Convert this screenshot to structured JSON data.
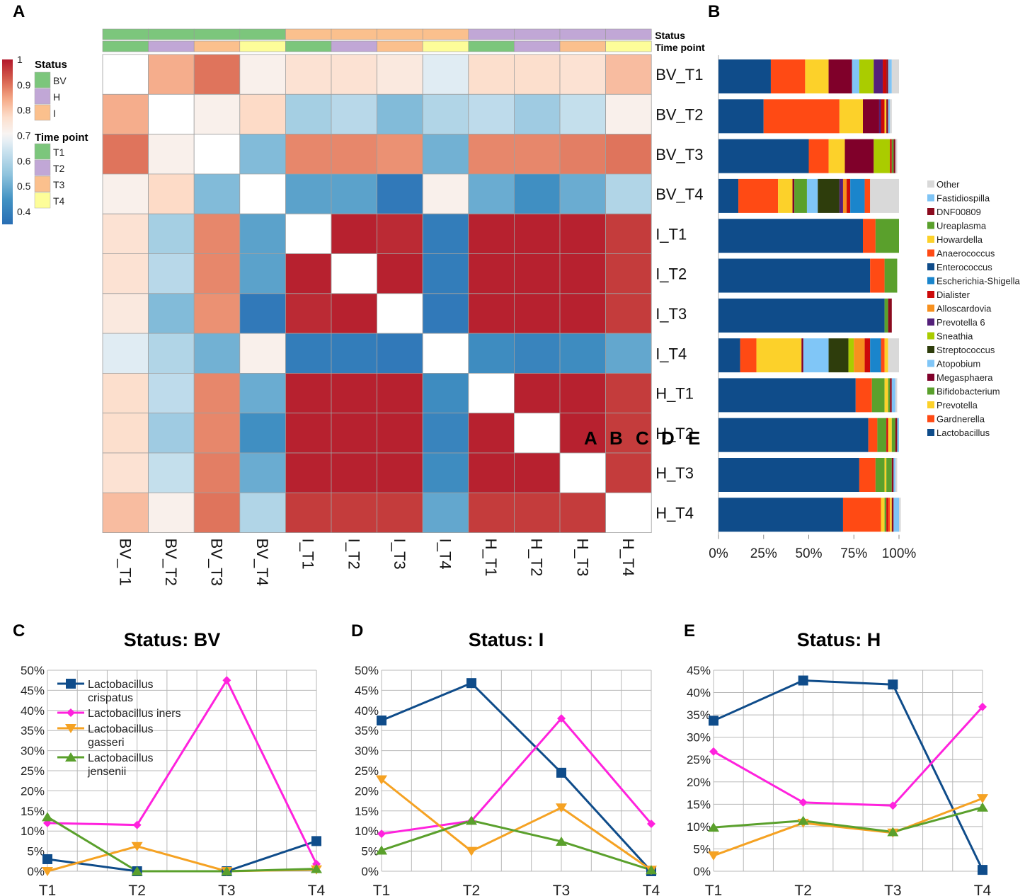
{
  "panel_letters": [
    "A",
    "B",
    "C",
    "D",
    "E"
  ],
  "stray_letters": [
    "A",
    "B",
    "C",
    "D",
    "E"
  ],
  "colors": {
    "status": {
      "BV": "#7cc67c",
      "H": "#c1a7d6",
      "I": "#fbc08d"
    },
    "timepoint": {
      "T1": "#7cc67c",
      "T2": "#c1a7d6",
      "T3": "#fbc08d",
      "T4": "#fdfd99"
    },
    "crispatus": "#0f4c8a",
    "iners": "#ff22dd",
    "gasseri": "#f5a223",
    "jensenii": "#5aa02c"
  },
  "chart_data": [
    {
      "type": "heatmap",
      "panel": "A",
      "rows": [
        "BV_T1",
        "BV_T2",
        "BV_T3",
        "BV_T4",
        "I_T1",
        "I_T2",
        "I_T3",
        "I_T4",
        "H_T1",
        "H_T2",
        "H_T3",
        "H_T4"
      ],
      "cols": [
        "BV_T1",
        "BV_T2",
        "BV_T3",
        "BV_T4",
        "I_T1",
        "I_T2",
        "I_T3",
        "I_T4",
        "H_T1",
        "H_T2",
        "H_T3",
        "H_T4"
      ],
      "values": [
        [
          null,
          0.84,
          0.9,
          0.72,
          0.76,
          0.76,
          0.74,
          0.67,
          0.77,
          0.77,
          0.76,
          0.82
        ],
        [
          0.84,
          null,
          0.72,
          0.78,
          0.58,
          0.61,
          0.53,
          0.6,
          0.62,
          0.57,
          0.63,
          0.72
        ],
        [
          0.9,
          0.72,
          null,
          0.53,
          0.88,
          0.88,
          0.87,
          0.51,
          0.88,
          0.88,
          0.89,
          0.9
        ],
        [
          0.72,
          0.78,
          0.53,
          null,
          0.48,
          0.48,
          0.38,
          0.72,
          0.5,
          0.44,
          0.5,
          0.6
        ],
        [
          0.76,
          0.58,
          0.88,
          0.48,
          null,
          0.99,
          0.98,
          0.39,
          0.99,
          0.99,
          0.99,
          0.96
        ],
        [
          0.76,
          0.61,
          0.88,
          0.48,
          0.99,
          null,
          0.99,
          0.39,
          0.99,
          0.99,
          0.99,
          0.96
        ],
        [
          0.74,
          0.53,
          0.87,
          0.38,
          0.98,
          0.99,
          null,
          0.38,
          0.99,
          0.99,
          0.99,
          0.96
        ],
        [
          0.67,
          0.6,
          0.51,
          0.72,
          0.39,
          0.39,
          0.38,
          null,
          0.43,
          0.41,
          0.43,
          0.49
        ],
        [
          0.77,
          0.62,
          0.88,
          0.5,
          0.99,
          0.99,
          0.99,
          0.43,
          null,
          0.99,
          0.99,
          0.96
        ],
        [
          0.77,
          0.57,
          0.88,
          0.44,
          0.99,
          0.99,
          0.99,
          0.41,
          0.99,
          null,
          0.99,
          0.96
        ],
        [
          0.76,
          0.63,
          0.89,
          0.5,
          0.99,
          0.99,
          0.99,
          0.43,
          0.99,
          0.99,
          null,
          0.96
        ],
        [
          0.82,
          0.72,
          0.9,
          0.6,
          0.96,
          0.96,
          0.96,
          0.49,
          0.96,
          0.96,
          0.96,
          null
        ]
      ],
      "annotation_labels": [
        "Status",
        "Time point"
      ],
      "status_row": [
        "BV",
        "BV",
        "BV",
        "BV",
        "I",
        "I",
        "I",
        "I",
        "H",
        "H",
        "H",
        "H"
      ],
      "timepoint_row": [
        "T1",
        "T2",
        "T3",
        "T4",
        "T1",
        "T2",
        "T3",
        "T4",
        "T1",
        "T2",
        "T3",
        "T4"
      ],
      "colorbar_ticks": [
        "1",
        "0.9",
        "0.8",
        "0.7",
        "0.6",
        "0.5",
        "0.4"
      ],
      "colorbar_range": [
        0.35,
        1.0
      ],
      "legend": {
        "status_title": "Status",
        "status_items": [
          "BV",
          "H",
          "I"
        ],
        "time_title": "Time point",
        "time_items": [
          "T1",
          "T2",
          "T3",
          "T4"
        ]
      }
    },
    {
      "type": "bar",
      "panel": "B",
      "orientation": "horizontal-stacked-100",
      "categories": [
        "BV_T1",
        "BV_T2",
        "BV_T3",
        "BV_T4",
        "I_T1",
        "I_T2",
        "I_T3",
        "I_T4",
        "H_T1",
        "H_T2",
        "H_T3",
        "H_T4"
      ],
      "xticks": [
        "0%",
        "25%",
        "50%",
        "75%",
        "100%"
      ],
      "legend": [
        {
          "name": "Other",
          "color": "#d9d9d9"
        },
        {
          "name": "Fastidiospilla",
          "color": "#7fc4f5"
        },
        {
          "name": "DNF00809",
          "color": "#8b0a1e"
        },
        {
          "name": "Ureaplasma",
          "color": "#5aa02c"
        },
        {
          "name": "Howardella",
          "color": "#fcd12a"
        },
        {
          "name": "Anaerococcus",
          "color": "#ff4a14"
        },
        {
          "name": "Enterococcus",
          "color": "#0f4c8a"
        },
        {
          "name": "Escherichia-Shigella",
          "color": "#1a85cc"
        },
        {
          "name": "Dialister",
          "color": "#cc0a0a"
        },
        {
          "name": "Alloscardovia",
          "color": "#f7901e"
        },
        {
          "name": "Prevotella 6",
          "color": "#54207a"
        },
        {
          "name": "Sneathia",
          "color": "#aacc00"
        },
        {
          "name": "Streptococcus",
          "color": "#2e3d0c"
        },
        {
          "name": "Atopobium",
          "color": "#80c6f7"
        },
        {
          "name": "Megasphaera",
          "color": "#80002a"
        },
        {
          "name": "Bifidobacterium",
          "color": "#5aa02c"
        },
        {
          "name": "Prevotella",
          "color": "#fcd12a"
        },
        {
          "name": "Gardnerella",
          "color": "#ff4a14"
        },
        {
          "name": "Lactobacillus",
          "color": "#0f4c8a"
        }
      ],
      "series": [
        {
          "name": "Lactobacillus",
          "values": [
            29,
            25,
            50,
            11,
            80,
            84,
            92,
            12,
            76,
            83,
            78,
            69
          ]
        },
        {
          "name": "Gardnerella",
          "values": [
            19,
            42,
            11,
            22,
            7,
            8,
            0,
            9,
            9,
            5,
            9,
            21
          ]
        },
        {
          "name": "Prevotella",
          "values": [
            13,
            13,
            9,
            8,
            0,
            0,
            0,
            25,
            0,
            0,
            0,
            2
          ]
        },
        {
          "name": "Megasphaera",
          "values": [
            13,
            9,
            16,
            1,
            0,
            0,
            0,
            1,
            0,
            0,
            0,
            0
          ]
        },
        {
          "name": "Bifidobacterium",
          "values": [
            0,
            0,
            0,
            7,
            0,
            0,
            0,
            0,
            7,
            5,
            5,
            1
          ]
        },
        {
          "name": "Atopobium",
          "values": [
            4,
            0,
            0,
            6,
            0,
            0,
            0,
            14,
            0,
            0,
            0,
            0
          ]
        },
        {
          "name": "Streptococcus",
          "values": [
            0,
            0,
            0,
            12,
            0,
            0,
            0,
            11,
            0,
            0,
            0,
            0
          ]
        },
        {
          "name": "Sneathia",
          "values": [
            8,
            0,
            9,
            0,
            0,
            0,
            0,
            3,
            0,
            0,
            0,
            0
          ]
        },
        {
          "name": "Prevotella 6",
          "values": [
            5,
            1,
            0,
            2,
            0,
            0,
            0,
            0,
            0,
            0,
            0,
            0
          ]
        },
        {
          "name": "Alloscardovia",
          "values": [
            0,
            0,
            0,
            2,
            0,
            0,
            0,
            6,
            0,
            0,
            0,
            0
          ]
        },
        {
          "name": "Dialister",
          "values": [
            2,
            2,
            1,
            2,
            0,
            0,
            0,
            3,
            0,
            1,
            0,
            1
          ]
        },
        {
          "name": "Escherichia-Shigella",
          "values": [
            0,
            0,
            0,
            8,
            0,
            0,
            0,
            6,
            0,
            0,
            0,
            0
          ]
        },
        {
          "name": "Enterococcus",
          "values": [
            0,
            0,
            0,
            0,
            0,
            0,
            0,
            0,
            0,
            0,
            0,
            0
          ]
        },
        {
          "name": "Anaerococcus",
          "values": [
            0,
            0,
            0,
            3,
            0,
            0,
            0,
            2,
            0,
            0,
            0,
            1
          ]
        },
        {
          "name": "Howardella",
          "values": [
            0,
            1,
            0,
            0,
            0,
            0,
            0,
            2,
            2,
            2,
            1,
            1
          ]
        },
        {
          "name": "Ureaplasma",
          "values": [
            0,
            0,
            1,
            0,
            13,
            7,
            2,
            0,
            1,
            2,
            3,
            0
          ]
        },
        {
          "name": "DNF00809",
          "values": [
            1,
            1,
            1,
            0,
            0,
            0,
            2,
            0,
            1,
            1,
            1,
            1
          ]
        },
        {
          "name": "Fastidiospilla",
          "values": [
            2,
            1,
            0,
            0,
            0,
            0,
            0,
            0,
            2,
            1,
            1,
            3
          ]
        },
        {
          "name": "Other",
          "values": [
            4,
            1,
            1,
            16,
            0,
            0,
            0,
            6,
            1,
            0,
            1,
            1
          ]
        }
      ]
    },
    {
      "type": "line",
      "panel": "C",
      "title": "Status: BV",
      "categories": [
        "T1",
        "T2",
        "T3",
        "T4"
      ],
      "yticks": [
        "50%",
        "45%",
        "40%",
        "35%",
        "30%",
        "25%",
        "20%",
        "15%",
        "10%",
        "5%",
        "0%"
      ],
      "ylim": [
        0,
        50
      ],
      "legend_placement": "top-left",
      "series": [
        {
          "name": "Lactobacillus crispatus",
          "legend_lines": [
            "Lactobacillus",
            "crispatus"
          ],
          "marker": "square",
          "values": [
            3.0,
            0.0,
            0.0,
            7.5
          ]
        },
        {
          "name": "Lactobacillus iners",
          "legend_lines": [
            "Lactobacillus iners"
          ],
          "marker": "diamond",
          "values": [
            12.0,
            11.5,
            47.5,
            1.8
          ]
        },
        {
          "name": "Lactobacillus gasseri",
          "legend_lines": [
            "Lactobacillus",
            "gasseri"
          ],
          "marker": "triangle-down",
          "values": [
            0.0,
            6.2,
            0.0,
            0.4
          ]
        },
        {
          "name": "Lactobacillus jensenii",
          "legend_lines": [
            "Lactobacillus",
            "jensenii"
          ],
          "marker": "triangle-up",
          "values": [
            13.5,
            0.0,
            0.0,
            0.6
          ]
        }
      ]
    },
    {
      "type": "line",
      "panel": "D",
      "title": "Status: I",
      "categories": [
        "T1",
        "T2",
        "T3",
        "T4"
      ],
      "yticks": [
        "50%",
        "45%",
        "40%",
        "35%",
        "30%",
        "25%",
        "20%",
        "15%",
        "10%",
        "5%",
        "0%"
      ],
      "ylim": [
        0,
        50
      ],
      "series": [
        {
          "name": "Lactobacillus crispatus",
          "marker": "square",
          "values": [
            37.5,
            46.8,
            24.5,
            0.0
          ]
        },
        {
          "name": "Lactobacillus iners",
          "marker": "diamond",
          "values": [
            9.3,
            12.5,
            38.0,
            11.8
          ]
        },
        {
          "name": "Lactobacillus gasseri",
          "marker": "triangle-down",
          "values": [
            22.8,
            5.0,
            15.8,
            0.3
          ]
        },
        {
          "name": "Lactobacillus jensenii",
          "marker": "triangle-up",
          "values": [
            5.2,
            12.6,
            7.4,
            0.3
          ]
        }
      ]
    },
    {
      "type": "line",
      "panel": "E",
      "title": "Status: H",
      "categories": [
        "T1",
        "T2",
        "T3",
        "T4"
      ],
      "yticks": [
        "45%",
        "40%",
        "35%",
        "30%",
        "25%",
        "20%",
        "15%",
        "10%",
        "5%",
        "0%"
      ],
      "ylim": [
        0,
        45
      ],
      "series": [
        {
          "name": "Lactobacillus crispatus",
          "marker": "square",
          "values": [
            33.7,
            42.7,
            41.8,
            0.3
          ]
        },
        {
          "name": "Lactobacillus iners",
          "marker": "diamond",
          "values": [
            26.8,
            15.4,
            14.7,
            36.8
          ]
        },
        {
          "name": "Lactobacillus gasseri",
          "marker": "triangle-down",
          "values": [
            3.5,
            10.8,
            8.6,
            16.3
          ]
        },
        {
          "name": "Lactobacillus jensenii",
          "marker": "triangle-up",
          "values": [
            9.8,
            11.3,
            8.8,
            14.3
          ]
        }
      ]
    }
  ]
}
